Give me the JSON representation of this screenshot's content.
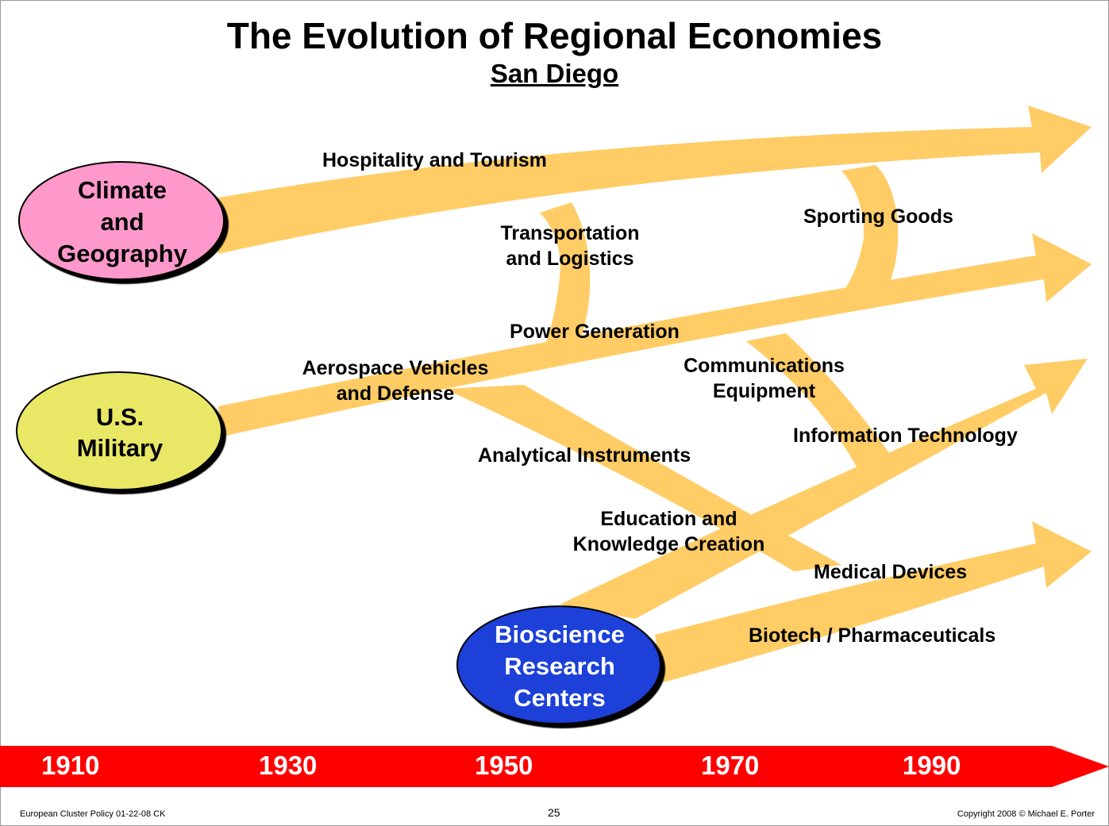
{
  "title": "The Evolution of Regional Economies",
  "subtitle": "San Diego",
  "origins": {
    "climate": {
      "lines": [
        "Climate",
        "and",
        "Geography"
      ],
      "color": "#ff99cc"
    },
    "military": {
      "lines": [
        "U.S.",
        "Military"
      ],
      "color": "#e8e866"
    },
    "bioscience": {
      "lines": [
        "Bioscience",
        "Research",
        "Centers"
      ],
      "color": "#1f3fd8"
    }
  },
  "arrow_color": "#ffcc66",
  "clusters": {
    "hospitality": "Hospitality and Tourism",
    "transportation": [
      "Transportation",
      "and Logistics"
    ],
    "sporting": "Sporting Goods",
    "power": "Power Generation",
    "aerospace": [
      "Aerospace Vehicles",
      "and Defense"
    ],
    "communications": [
      "Communications",
      "Equipment"
    ],
    "it": "Information Technology",
    "analytical": "Analytical Instruments",
    "education": [
      "Education and",
      "Knowledge Creation"
    ],
    "medical": "Medical Devices",
    "biotech": "Biotech / Pharmaceuticals"
  },
  "timeline": {
    "years": [
      "1910",
      "1930",
      "1950",
      "1970",
      "1990"
    ],
    "color": "#ff0000"
  },
  "footer": {
    "left": "European Cluster Policy 01-22-08 CK",
    "page": "25",
    "right": "Copyright 2008 © Michael E. Porter"
  }
}
